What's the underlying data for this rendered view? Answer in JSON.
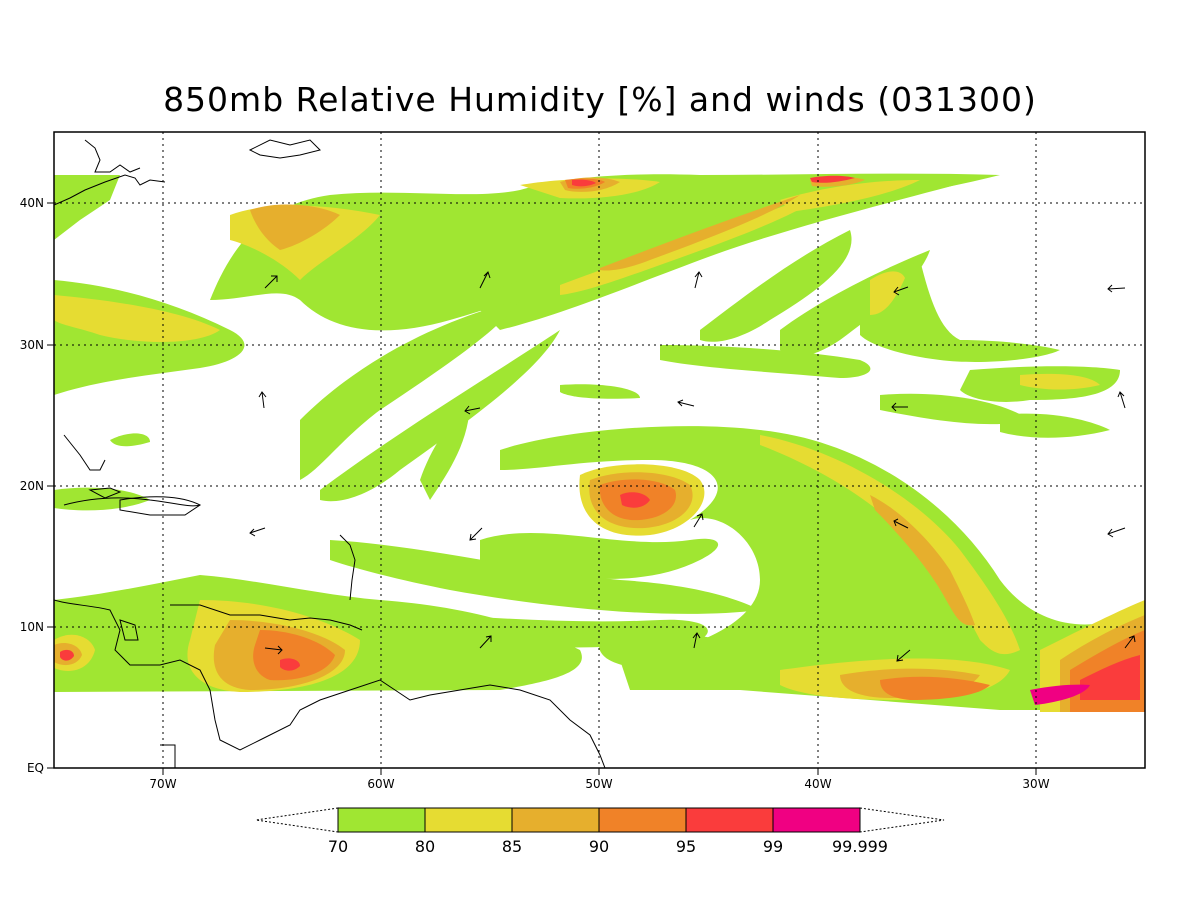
{
  "title": "850mb Relative Humidity [%] and winds (031300)",
  "map": {
    "lon_range": [
      -75,
      -25
    ],
    "lat_range": [
      0,
      45
    ],
    "lon_ticks": [
      "70W",
      "60W",
      "50W",
      "40W",
      "30W"
    ],
    "lat_ticks": [
      "EQ",
      "10N",
      "20N",
      "30N",
      "40N"
    ],
    "grid": "dotted"
  },
  "colorbar": {
    "labels": [
      "70",
      "80",
      "85",
      "90",
      "95",
      "99",
      "99.999"
    ],
    "colors": [
      "#a0e632",
      "#e6dc32",
      "#e6af2d",
      "#f08228",
      "#fa3c3c",
      "#f00082"
    ]
  },
  "colors": {
    "c70": "#a0e632",
    "c80": "#e6dc32",
    "c85": "#e6af2d",
    "c90": "#f08228",
    "c95": "#fa3c3c",
    "c99": "#f00082"
  }
}
